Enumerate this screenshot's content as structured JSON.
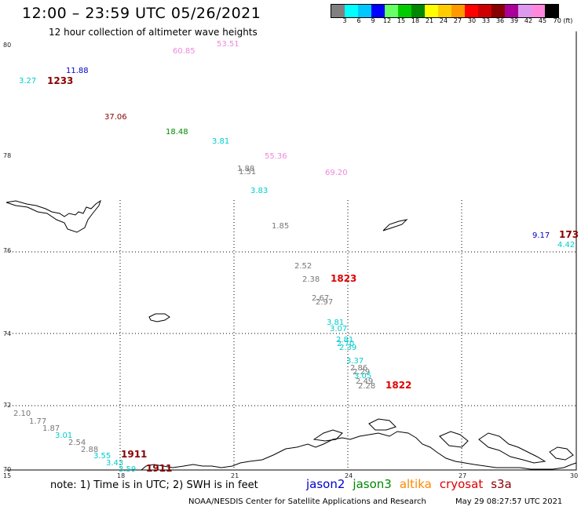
{
  "header": {
    "title": "12:00 – 23:59 UTC 05/26/2021",
    "subtitle": "12 hour collection of altimeter wave heights"
  },
  "scale": {
    "colors": [
      "#808080",
      "#00ffff",
      "#00c8ff",
      "#0000ff",
      "#66ff66",
      "#00cc00",
      "#008800",
      "#ffff00",
      "#ffcc00",
      "#ff9900",
      "#ff0000",
      "#cc0000",
      "#880000",
      "#aa0099",
      "#dd99ee",
      "#ff88dd",
      "#000000"
    ],
    "labels": [
      "3",
      "6",
      "9",
      "12",
      "15",
      "18",
      "21",
      "24",
      "27",
      "30",
      "33",
      "36",
      "39",
      "42",
      "45",
      "70 (ft)"
    ]
  },
  "axes": {
    "lat_labels": [
      "80",
      "78",
      "76",
      "74",
      "72",
      "70"
    ],
    "lon_labels": [
      "15",
      "18",
      "21",
      "24",
      "27",
      "30"
    ]
  },
  "footer": {
    "note": "note: 1) Time is in UTC; 2) SWH is in feet",
    "legend": [
      {
        "name": "jason2",
        "color": "#0000cc"
      },
      {
        "name": "jason3",
        "color": "#008800"
      },
      {
        "name": "altika",
        "color": "#ff8800"
      },
      {
        "name": "cryosat",
        "color": "#dd0000"
      },
      {
        "name": "s3a",
        "color": "#880000"
      }
    ],
    "credit": "NOAA/NESDIS Center for Satellite Applications and Research",
    "timestamp": "May 29 08:27:57 UTC 2021"
  },
  "observations": [
    {
      "text": "60.85",
      "color": "#ee88dd"
    },
    {
      "text": "53.51",
      "color": "#ee88dd"
    },
    {
      "text": "11.88",
      "color": "#0000cc"
    },
    {
      "text": "3.27",
      "color": "#00cccc"
    },
    {
      "text": "1233",
      "color": "#880000",
      "time": true
    },
    {
      "text": "37.06",
      "color": "#880000"
    },
    {
      "text": "18.48",
      "color": "#008800"
    },
    {
      "text": "3.81",
      "color": "#00cccc"
    },
    {
      "text": "55.36",
      "color": "#ee88dd"
    },
    {
      "text": "1.88",
      "color": "#777777"
    },
    {
      "text": "1.51",
      "color": "#777777"
    },
    {
      "text": "69.20",
      "color": "#ee88dd"
    },
    {
      "text": "3.83",
      "color": "#00cccc"
    },
    {
      "text": "1.85",
      "color": "#777777"
    },
    {
      "text": "9.17",
      "color": "#0000cc"
    },
    {
      "text": "173",
      "color": "#880000",
      "time": true
    },
    {
      "text": "4.42",
      "color": "#00cccc"
    },
    {
      "text": "2.52",
      "color": "#777777"
    },
    {
      "text": "2.38",
      "color": "#777777"
    },
    {
      "text": "1823",
      "color": "#dd0000",
      "time": true
    },
    {
      "text": "2.67",
      "color": "#777777"
    },
    {
      "text": "2.97",
      "color": "#777777"
    },
    {
      "text": "3.81",
      "color": "#00cccc"
    },
    {
      "text": "3.07",
      "color": "#00cccc"
    },
    {
      "text": "2.81",
      "color": "#00cccc"
    },
    {
      "text": "2.70",
      "color": "#00cccc"
    },
    {
      "text": "2.39",
      "color": "#00cccc"
    },
    {
      "text": "3.37",
      "color": "#00cccc"
    },
    {
      "text": "2.86",
      "color": "#777777"
    },
    {
      "text": "2.29",
      "color": "#777777"
    },
    {
      "text": "3.05",
      "color": "#00cccc"
    },
    {
      "text": "2.49",
      "color": "#777777"
    },
    {
      "text": "2.28",
      "color": "#777777"
    },
    {
      "text": "1822",
      "color": "#dd0000",
      "time": true
    },
    {
      "text": "2.10",
      "color": "#777777"
    },
    {
      "text": "1.77",
      "color": "#777777"
    },
    {
      "text": "1.87",
      "color": "#777777"
    },
    {
      "text": "3.01",
      "color": "#00cccc"
    },
    {
      "text": "2.54",
      "color": "#777777"
    },
    {
      "text": "2.88",
      "color": "#777777"
    },
    {
      "text": "3.55",
      "color": "#00cccc"
    },
    {
      "text": "1911",
      "color": "#880000",
      "time": true
    },
    {
      "text": "3.43",
      "color": "#00cccc"
    },
    {
      "text": "3.59",
      "color": "#00cccc"
    },
    {
      "text": "1911",
      "color": "#880000",
      "time": true
    }
  ]
}
